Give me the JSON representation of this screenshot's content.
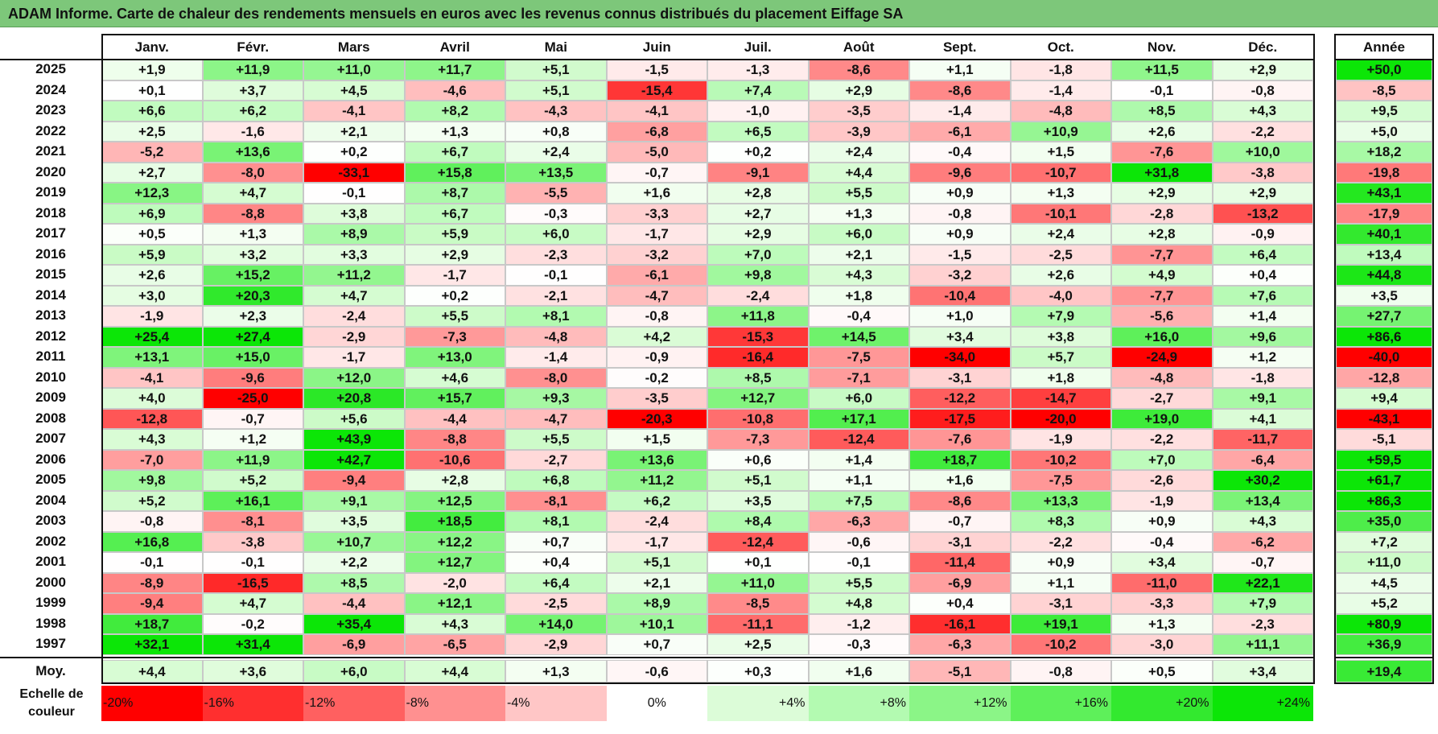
{
  "title": "ADAM Informe. Carte de chaleur des rendements mensuels en euros avec les revenus connus distribués du placement Eiffage SA",
  "chart_data": {
    "type": "heatmap",
    "title": "ADAM Informe. Carte de chaleur des rendements mensuels en euros avec les revenus connus distribués du placement Eiffage SA",
    "months": [
      "Janv.",
      "Févr.",
      "Mars",
      "Avril",
      "Mai",
      "Juin",
      "Juil.",
      "Août",
      "Sept.",
      "Oct.",
      "Nov.",
      "Déc."
    ],
    "year_header": "Année",
    "rows": [
      {
        "year": "2025",
        "values": [
          "+1,9",
          "+11,9",
          "+11,0",
          "+11,7",
          "+5,1",
          "-1,5",
          "-1,3",
          "-8,6",
          "+1,1",
          "-1,8",
          "+11,5",
          "+2,9"
        ],
        "annual": "+50,0"
      },
      {
        "year": "2024",
        "values": [
          "+0,1",
          "+3,7",
          "+4,5",
          "-4,6",
          "+5,1",
          "-15,4",
          "+7,4",
          "+2,9",
          "-8,6",
          "-1,4",
          "-0,1",
          "-0,8"
        ],
        "annual": "-8,5"
      },
      {
        "year": "2023",
        "values": [
          "+6,6",
          "+6,2",
          "-4,1",
          "+8,2",
          "-4,3",
          "-4,1",
          "-1,0",
          "-3,5",
          "-1,4",
          "-4,8",
          "+8,5",
          "+4,3"
        ],
        "annual": "+9,5"
      },
      {
        "year": "2022",
        "values": [
          "+2,5",
          "-1,6",
          "+2,1",
          "+1,3",
          "+0,8",
          "-6,8",
          "+6,5",
          "-3,9",
          "-6,1",
          "+10,9",
          "+2,6",
          "-2,2"
        ],
        "annual": "+5,0"
      },
      {
        "year": "2021",
        "values": [
          "-5,2",
          "+13,6",
          "+0,2",
          "+6,7",
          "+2,4",
          "-5,0",
          "+0,2",
          "+2,4",
          "-0,4",
          "+1,5",
          "-7,6",
          "+10,0"
        ],
        "annual": "+18,2"
      },
      {
        "year": "2020",
        "values": [
          "+2,7",
          "-8,0",
          "-33,1",
          "+15,8",
          "+13,5",
          "-0,7",
          "-9,1",
          "+4,4",
          "-9,6",
          "-10,7",
          "+31,8",
          "-3,8"
        ],
        "annual": "-19,8"
      },
      {
        "year": "2019",
        "values": [
          "+12,3",
          "+4,7",
          "-0,1",
          "+8,7",
          "-5,5",
          "+1,6",
          "+2,8",
          "+5,5",
          "+0,9",
          "+1,3",
          "+2,9",
          "+2,9"
        ],
        "annual": "+43,1"
      },
      {
        "year": "2018",
        "values": [
          "+6,9",
          "-8,8",
          "+3,8",
          "+6,7",
          "-0,3",
          "-3,3",
          "+2,7",
          "+1,3",
          "-0,8",
          "-10,1",
          "-2,8",
          "-13,2"
        ],
        "annual": "-17,9"
      },
      {
        "year": "2017",
        "values": [
          "+0,5",
          "+1,3",
          "+8,9",
          "+5,9",
          "+6,0",
          "-1,7",
          "+2,9",
          "+6,0",
          "+0,9",
          "+2,4",
          "+2,8",
          "-0,9"
        ],
        "annual": "+40,1"
      },
      {
        "year": "2016",
        "values": [
          "+5,9",
          "+3,2",
          "+3,3",
          "+2,9",
          "-2,3",
          "-3,2",
          "+7,0",
          "+2,1",
          "-1,5",
          "-2,5",
          "-7,7",
          "+6,4"
        ],
        "annual": "+13,4"
      },
      {
        "year": "2015",
        "values": [
          "+2,6",
          "+15,2",
          "+11,2",
          "-1,7",
          "-0,1",
          "-6,1",
          "+9,8",
          "+4,3",
          "-3,2",
          "+2,6",
          "+4,9",
          "+0,4"
        ],
        "annual": "+44,8"
      },
      {
        "year": "2014",
        "values": [
          "+3,0",
          "+20,3",
          "+4,7",
          "+0,2",
          "-2,1",
          "-4,7",
          "-2,4",
          "+1,8",
          "-10,4",
          "-4,0",
          "-7,7",
          "+7,6"
        ],
        "annual": "+3,5"
      },
      {
        "year": "2013",
        "values": [
          "-1,9",
          "+2,3",
          "-2,4",
          "+5,5",
          "+8,1",
          "-0,8",
          "+11,8",
          "-0,4",
          "+1,0",
          "+7,9",
          "-5,6",
          "+1,4"
        ],
        "annual": "+27,7"
      },
      {
        "year": "2012",
        "values": [
          "+25,4",
          "+27,4",
          "-2,9",
          "-7,3",
          "-4,8",
          "+4,2",
          "-15,3",
          "+14,5",
          "+3,4",
          "+3,8",
          "+16,0",
          "+9,6"
        ],
        "annual": "+86,6"
      },
      {
        "year": "2011",
        "values": [
          "+13,1",
          "+15,0",
          "-1,7",
          "+13,0",
          "-1,4",
          "-0,9",
          "-16,4",
          "-7,5",
          "-34,0",
          "+5,7",
          "-24,9",
          "+1,2"
        ],
        "annual": "-40,0"
      },
      {
        "year": "2010",
        "values": [
          "-4,1",
          "-9,6",
          "+12,0",
          "+4,6",
          "-8,0",
          "-0,2",
          "+8,5",
          "-7,1",
          "-3,1",
          "+1,8",
          "-4,8",
          "-1,8"
        ],
        "annual": "-12,8"
      },
      {
        "year": "2009",
        "values": [
          "+4,0",
          "-25,0",
          "+20,8",
          "+15,7",
          "+9,3",
          "-3,5",
          "+12,7",
          "+6,0",
          "-12,2",
          "-14,7",
          "-2,7",
          "+9,1"
        ],
        "annual": "+9,4"
      },
      {
        "year": "2008",
        "values": [
          "-12,8",
          "-0,7",
          "+5,6",
          "-4,4",
          "-4,7",
          "-20,3",
          "-10,8",
          "+17,1",
          "-17,5",
          "-20,0",
          "+19,0",
          "+4,1"
        ],
        "annual": "-43,1"
      },
      {
        "year": "2007",
        "values": [
          "+4,3",
          "+1,2",
          "+43,9",
          "-8,8",
          "+5,5",
          "+1,5",
          "-7,3",
          "-12,4",
          "-7,6",
          "-1,9",
          "-2,2",
          "-11,7"
        ],
        "annual": "-5,1"
      },
      {
        "year": "2006",
        "values": [
          "-7,0",
          "+11,9",
          "+42,7",
          "-10,6",
          "-2,7",
          "+13,6",
          "+0,6",
          "+1,4",
          "+18,7",
          "-10,2",
          "+7,0",
          "-6,4"
        ],
        "annual": "+59,5"
      },
      {
        "year": "2005",
        "values": [
          "+9,8",
          "+5,2",
          "-9,4",
          "+2,8",
          "+6,8",
          "+11,2",
          "+5,1",
          "+1,1",
          "+1,6",
          "-7,5",
          "-2,6",
          "+30,2"
        ],
        "annual": "+61,7"
      },
      {
        "year": "2004",
        "values": [
          "+5,2",
          "+16,1",
          "+9,1",
          "+12,5",
          "-8,1",
          "+6,2",
          "+3,5",
          "+7,5",
          "-8,6",
          "+13,3",
          "-1,9",
          "+13,4"
        ],
        "annual": "+86,3"
      },
      {
        "year": "2003",
        "values": [
          "-0,8",
          "-8,1",
          "+3,5",
          "+18,5",
          "+8,1",
          "-2,4",
          "+8,4",
          "-6,3",
          "-0,7",
          "+8,3",
          "+0,9",
          "+4,3"
        ],
        "annual": "+35,0"
      },
      {
        "year": "2002",
        "values": [
          "+16,8",
          "-3,8",
          "+10,7",
          "+12,2",
          "+0,7",
          "-1,7",
          "-12,4",
          "-0,6",
          "-3,1",
          "-2,2",
          "-0,4",
          "-6,2"
        ],
        "annual": "+7,2"
      },
      {
        "year": "2001",
        "values": [
          "-0,1",
          "-0,1",
          "+2,2",
          "+12,7",
          "+0,4",
          "+5,1",
          "+0,1",
          "-0,1",
          "-11,4",
          "+0,9",
          "+3,4",
          "-0,7"
        ],
        "annual": "+11,0"
      },
      {
        "year": "2000",
        "values": [
          "-8,9",
          "-16,5",
          "+8,5",
          "-2,0",
          "+6,4",
          "+2,1",
          "+11,0",
          "+5,5",
          "-6,9",
          "+1,1",
          "-11,0",
          "+22,1"
        ],
        "annual": "+4,5"
      },
      {
        "year": "1999",
        "values": [
          "-9,4",
          "+4,7",
          "-4,4",
          "+12,1",
          "-2,5",
          "+8,9",
          "-8,5",
          "+4,8",
          "+0,4",
          "-3,1",
          "-3,3",
          "+7,9"
        ],
        "annual": "+5,2"
      },
      {
        "year": "1998",
        "values": [
          "+18,7",
          "-0,2",
          "+35,4",
          "+4,3",
          "+14,0",
          "+10,1",
          "-11,1",
          "-1,2",
          "-16,1",
          "+19,1",
          "+1,3",
          "-2,3"
        ],
        "annual": "+80,9"
      },
      {
        "year": "1997",
        "values": [
          "+32,1",
          "+31,4",
          "-6,9",
          "-6,5",
          "-2,9",
          "+0,7",
          "+2,5",
          "-0,3",
          "-6,3",
          "-10,2",
          "-3,0",
          "+11,1"
        ],
        "annual": "+36,9"
      }
    ],
    "average": {
      "label": "Moy.",
      "values": [
        "+4,4",
        "+3,6",
        "+6,0",
        "+4,4",
        "+1,3",
        "-0,6",
        "+0,3",
        "+1,6",
        "-5,1",
        "-0,8",
        "+0,5",
        "+3,4"
      ],
      "annual": "+19,4"
    },
    "scale": {
      "label": "Echelle de couleur",
      "stops": [
        {
          "label": "-20%",
          "value": -20,
          "color": "#ff0000",
          "align": "left"
        },
        {
          "label": "-16%",
          "value": -16,
          "color": "#ff2f2f",
          "align": "left"
        },
        {
          "label": "-12%",
          "value": -12,
          "color": "#ff6060",
          "align": "left"
        },
        {
          "label": "-8%",
          "value": -8,
          "color": "#ff9090",
          "align": "left"
        },
        {
          "label": "-4%",
          "value": -4,
          "color": "#ffc6c6",
          "align": "left"
        },
        {
          "label": "0%",
          "value": 0,
          "color": "#ffffff",
          "align": "center"
        },
        {
          "label": "+4%",
          "value": 4,
          "color": "#dcfcd8",
          "align": "right"
        },
        {
          "label": "+8%",
          "value": 8,
          "color": "#b3fab1",
          "align": "right"
        },
        {
          "label": "+12%",
          "value": 12,
          "color": "#8bf587",
          "align": "right"
        },
        {
          "label": "+16%",
          "value": 16,
          "color": "#5ef05a",
          "align": "right"
        },
        {
          "label": "+20%",
          "value": 20,
          "color": "#33e92f",
          "align": "right"
        },
        {
          "label": "+24%",
          "value": 24,
          "color": "#0ce607",
          "align": "right"
        }
      ]
    }
  }
}
